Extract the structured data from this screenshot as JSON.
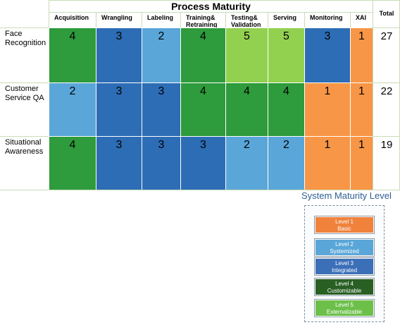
{
  "title": "Process Maturity",
  "total_header": "Total",
  "columns": [
    "Acquisition",
    "Wrangling",
    "Labeling",
    "Training&\nRetraining",
    "Testing&\nValidation",
    "Serving",
    "Monitoring",
    "XAI"
  ],
  "level_colors": {
    "1": "#f79646",
    "2": "#5aa6d8",
    "3": "#2d6db5",
    "4": "#2e9b3c",
    "5": "#92d050"
  },
  "rows": [
    {
      "label": "Face\nRecognition",
      "values": [
        4,
        3,
        2,
        4,
        5,
        5,
        3,
        1
      ],
      "total": "27"
    },
    {
      "label": "Customer\nService QA",
      "values": [
        2,
        3,
        3,
        4,
        4,
        4,
        1,
        1
      ],
      "total": "22"
    },
    {
      "label": "Situational\nAwareness",
      "values": [
        4,
        3,
        3,
        3,
        2,
        2,
        1,
        1
      ],
      "total": "19"
    }
  ],
  "legend": {
    "title": "System Maturity Level",
    "items": [
      {
        "level": "Level 1",
        "name": "Basic",
        "color": "#f0823c"
      },
      {
        "level": "Level 2",
        "name": "Systemized",
        "color": "#5aa6d8"
      },
      {
        "level": "Level 3",
        "name": "Integrated",
        "color": "#3b6fb8"
      },
      {
        "level": "Level 4",
        "name": "Customizable",
        "color": "#2a5f24"
      },
      {
        "level": "Level 5",
        "name": "Externalizable",
        "color": "#6cc04a"
      }
    ]
  }
}
